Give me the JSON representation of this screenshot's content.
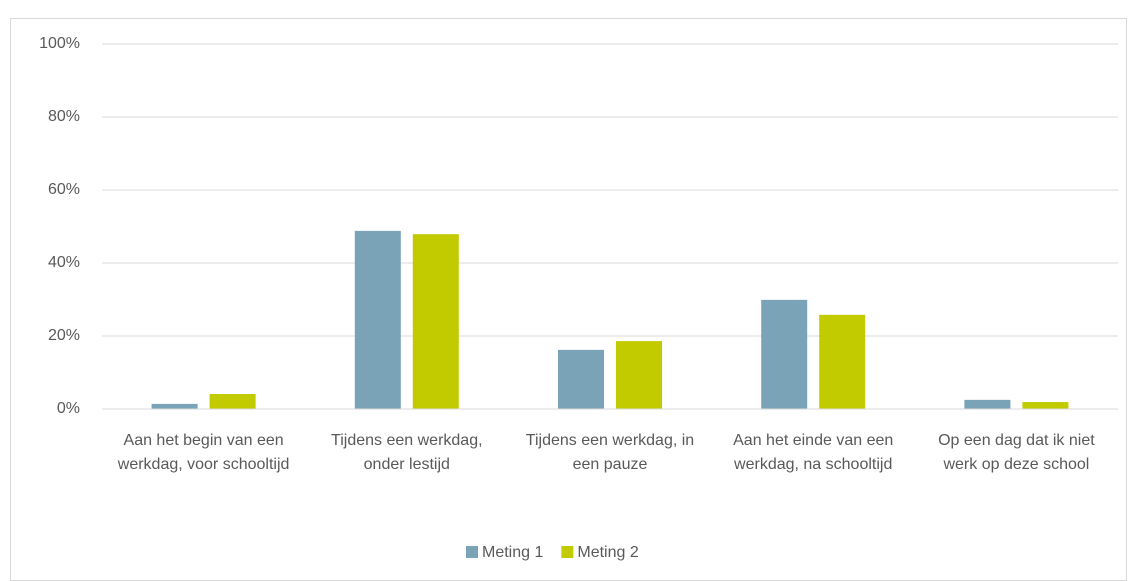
{
  "chart_data": {
    "type": "bar",
    "categories": [
      "Aan het begin van een werkdag, voor schooltijd",
      "Tijdens een werkdag, onder lestijd",
      "Tijdens een werkdag, in een pauze",
      "Aan het einde van een werkdag, na schooltijd",
      "Op een dag dat ik niet werk op deze school"
    ],
    "series": [
      {
        "name": "Meting 1",
        "color": "#7aa3b8",
        "values": [
          1.4,
          48.8,
          16.2,
          29.9,
          2.5
        ]
      },
      {
        "name": "Meting 2",
        "color": "#c2cb00",
        "values": [
          4.1,
          47.9,
          18.6,
          25.8,
          1.9
        ]
      }
    ],
    "ylim": [
      0,
      100
    ],
    "yticks": [
      {
        "value": 0,
        "label": "0%"
      },
      {
        "value": 20,
        "label": "20%"
      },
      {
        "value": 40,
        "label": "40%"
      },
      {
        "value": 60,
        "label": "60%"
      },
      {
        "value": 80,
        "label": "80%"
      },
      {
        "value": 100,
        "label": "100%"
      }
    ],
    "grid": true,
    "legend": "bottom"
  }
}
